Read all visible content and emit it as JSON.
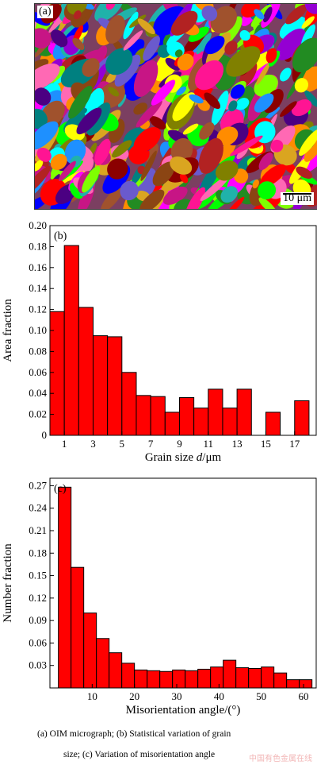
{
  "micrograph": {
    "label": "(a)",
    "scale_bar": "10 μm"
  },
  "chart_data": [
    {
      "type": "bar",
      "panel": "(b)",
      "xlabel_prefix": "Grain size ",
      "xlabel_var": "d",
      "xlabel_unit": "/μm",
      "ylabel": "Area fraction",
      "ylim": [
        0,
        0.2
      ],
      "yticks": [
        "0",
        "0.02",
        "0.04",
        "0.06",
        "0.08",
        "0.10",
        "0.12",
        "0.14",
        "0.16",
        "0.18",
        "0.20"
      ],
      "xticks": [
        "1",
        "3",
        "5",
        "7",
        "9",
        "11",
        "13",
        "15",
        "17"
      ],
      "xlim": [
        0,
        18.5
      ],
      "bin_width": 1,
      "x": [
        0.5,
        1.5,
        2.5,
        3.5,
        4.5,
        5.5,
        6.5,
        7.5,
        8.5,
        9.5,
        10.5,
        11.5,
        12.5,
        13.5,
        14.5,
        15.5,
        16.5,
        17.5
      ],
      "values": [
        0.118,
        0.181,
        0.122,
        0.095,
        0.094,
        0.06,
        0.038,
        0.037,
        0.022,
        0.036,
        0.026,
        0.044,
        0.026,
        0.044,
        0,
        0.022,
        0,
        0.033
      ],
      "color": "#ff0000",
      "grid": false
    },
    {
      "type": "bar",
      "panel": "(c)",
      "xlabel": "Misorientation angle/(°)",
      "ylabel": "Number fraction",
      "ylim": [
        0,
        0.28
      ],
      "yticks": [
        "0.03",
        "0.06",
        "0.09",
        "0.12",
        "0.15",
        "0.18",
        "0.21",
        "0.24",
        "0.27"
      ],
      "xticks": [
        "10",
        "20",
        "30",
        "40",
        "50",
        "60"
      ],
      "xlim": [
        0,
        63
      ],
      "bin_width": 3,
      "x": [
        3.5,
        6.5,
        9.5,
        12.5,
        15.5,
        18.5,
        21.5,
        24.5,
        27.5,
        30.5,
        33.5,
        36.5,
        39.5,
        42.5,
        45.5,
        48.5,
        51.5,
        54.5,
        57.5,
        60.5
      ],
      "values": [
        0.268,
        0.161,
        0.1,
        0.066,
        0.047,
        0.033,
        0.024,
        0.023,
        0.022,
        0.024,
        0.023,
        0.025,
        0.028,
        0.037,
        0.027,
        0.026,
        0.028,
        0.02,
        0.011,
        0.011
      ],
      "color": "#ff0000",
      "grid": false
    }
  ],
  "caption": {
    "line1": "(a) OIM micrograph; (b) Statistical variation of grain",
    "line2": "size; (c) Variation of misorientation angle"
  },
  "watermark": "中国有色金属在线"
}
